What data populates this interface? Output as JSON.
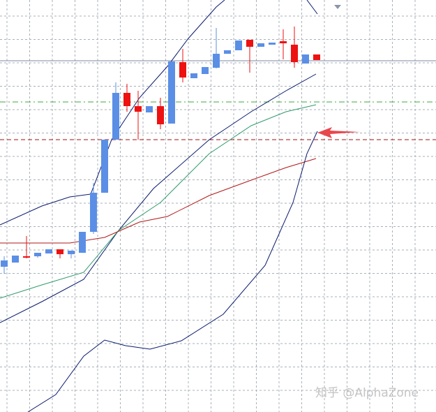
{
  "watermark": "知乎 @AlphaZone"
}
